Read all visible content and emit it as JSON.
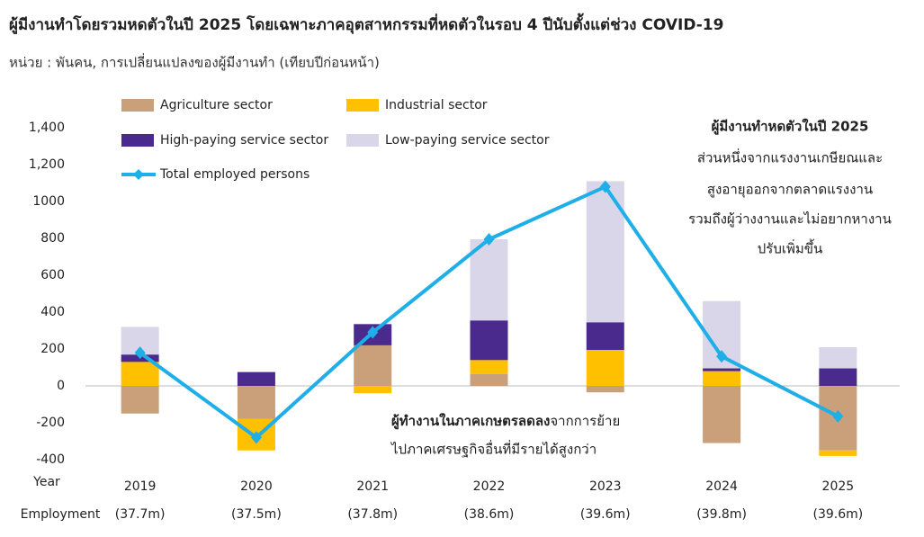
{
  "chart_data": {
    "type": "bar",
    "title": "ผู้มีงานทำโดยรวมหดตัวในปี 2025 โดยเฉพาะภาคอุตสาหกรรมที่หดตัวในรอบ 4 ปีนับตั้งแต่ช่วง COVID-19",
    "subtitle": "หน่วย : พันคน, การเปลี่ยนแปลงของผู้มีงานทำ (เทียบปีก่อนหน้า)",
    "x_label": "Year",
    "employment_label": "Employment",
    "categories": [
      "2019",
      "2020",
      "2021",
      "2022",
      "2023",
      "2024",
      "2025"
    ],
    "employment": [
      "(37.7m)",
      "(37.5m)",
      "(37.8m)",
      "(38.6m)",
      "(39.6m)",
      "(39.8m)",
      "(39.6m)"
    ],
    "series": [
      {
        "name": "Agriculture sector",
        "color": "#c9a07a",
        "values": [
          -150,
          -180,
          220,
          65,
          -35,
          -310,
          -350
        ]
      },
      {
        "name": "Industrial sector",
        "color": "#ffc000",
        "values": [
          130,
          -170,
          -40,
          75,
          195,
          80,
          -30
        ]
      },
      {
        "name": "High-paying service sector",
        "color": "#4b2a8e",
        "values": [
          40,
          75,
          115,
          215,
          150,
          15,
          95
        ]
      },
      {
        "name": "Low-paying service sector",
        "color": "#d9d6ea",
        "values": [
          150,
          0,
          0,
          440,
          765,
          365,
          115
        ]
      },
      {
        "name": "Total employed persons",
        "color": "#1eaee8",
        "type": "line",
        "values": [
          180,
          -280,
          290,
          795,
          1080,
          160,
          -165
        ]
      }
    ],
    "ylim": [
      -400,
      1400
    ],
    "yticks": [
      -400,
      -200,
      0,
      200,
      400,
      600,
      800,
      1000,
      {
        "value": 1200,
        "label": "1,200"
      },
      {
        "value": 1400,
        "label": "1,400"
      }
    ],
    "annotations": {
      "top_right": {
        "heading": "ผู้มีงานทำหดตัวในปี 2025",
        "lines": [
          "ส่วนหนึ่งจากแรงงานเกษียณและ",
          "สูงอายุออกจากตลาดแรงงาน",
          "รวมถึงผู้ว่างงานและไม่อยากหางาน",
          "ปรับเพิ่มขึ้น"
        ]
      },
      "bottom": {
        "bold": "ผู้ทำงานในภาคเกษตรลดลง",
        "rest": "จากการย้าย",
        "line2": "ไปภาคเศรษฐกิจอื่นที่มีรายได้สูงกว่า"
      }
    }
  }
}
